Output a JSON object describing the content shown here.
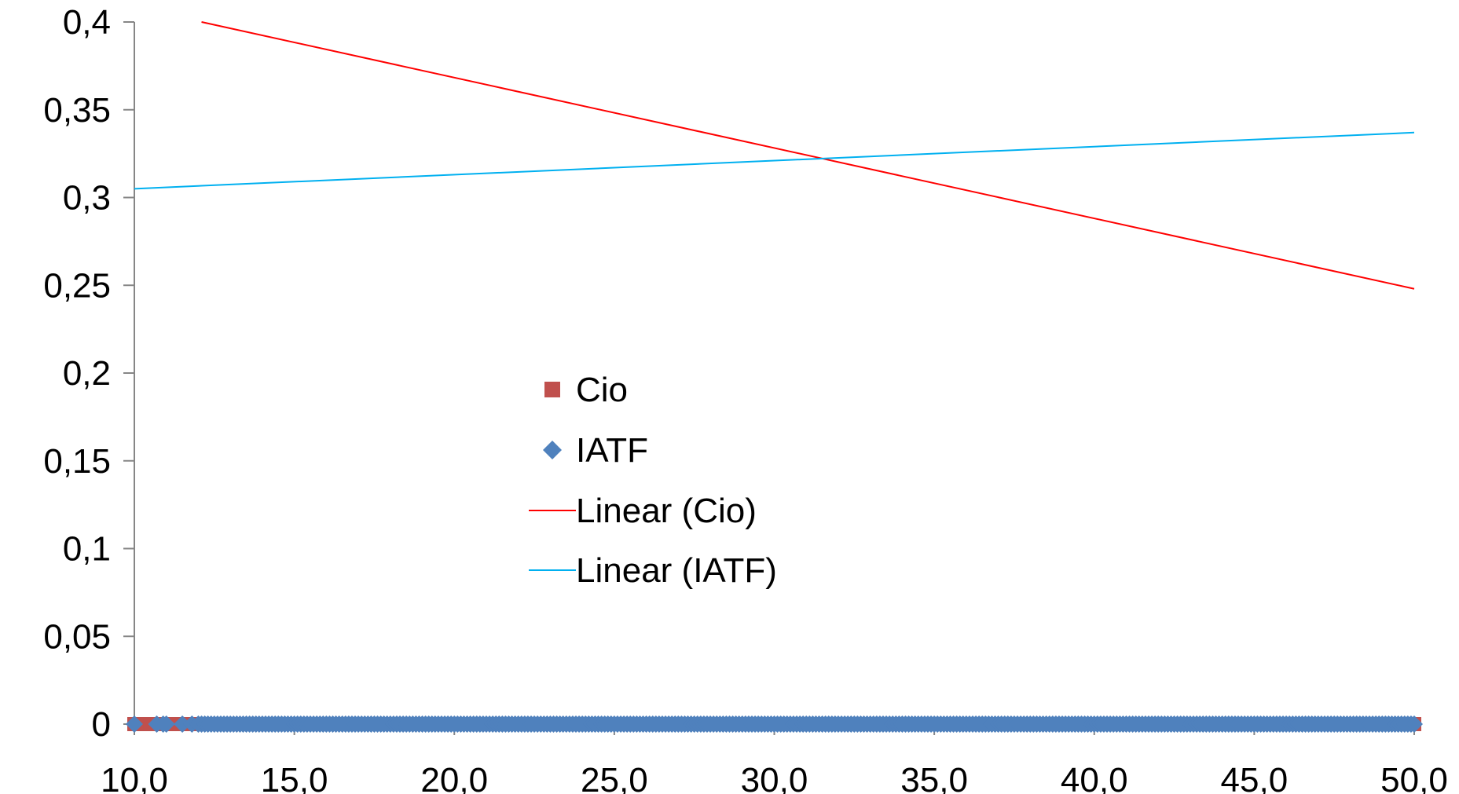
{
  "chart_data": {
    "type": "scatter",
    "title": "",
    "xlabel": "",
    "ylabel": "",
    "xlim": [
      10,
      50
    ],
    "ylim": [
      0,
      0.4
    ],
    "x_ticks": [
      10,
      15,
      20,
      25,
      30,
      35,
      40,
      45,
      50
    ],
    "x_tick_labels": [
      "10,0",
      "15,0",
      "20,0",
      "25,0",
      "30,0",
      "35,0",
      "40,0",
      "45,0",
      "50,0"
    ],
    "y_ticks": [
      0,
      0.05,
      0.1,
      0.15,
      0.2,
      0.25,
      0.3,
      0.35,
      0.4
    ],
    "y_tick_labels": [
      "0",
      "0,05",
      "0,1",
      "0,15",
      "0,2",
      "0,25",
      "0,3",
      "0,35",
      "0,4"
    ],
    "grid": false,
    "legend_position": "center",
    "series": [
      {
        "name": "Cio",
        "marker": "square",
        "color": "#c0504d",
        "x_range": [
          10,
          50
        ],
        "y": 0
      },
      {
        "name": "IATF",
        "marker": "diamond",
        "color": "#4f81bd",
        "x_range": [
          10,
          50
        ],
        "y": 0
      }
    ],
    "trendlines": [
      {
        "name": "Linear (Cio)",
        "type": "linear",
        "color": "#ff0000",
        "x": [
          12.1,
          50
        ],
        "y": [
          0.4,
          0.248
        ]
      },
      {
        "name": "Linear (IATF)",
        "type": "linear",
        "color": "#00b0f0",
        "x": [
          10,
          50
        ],
        "y": [
          0.305,
          0.337
        ]
      }
    ]
  }
}
